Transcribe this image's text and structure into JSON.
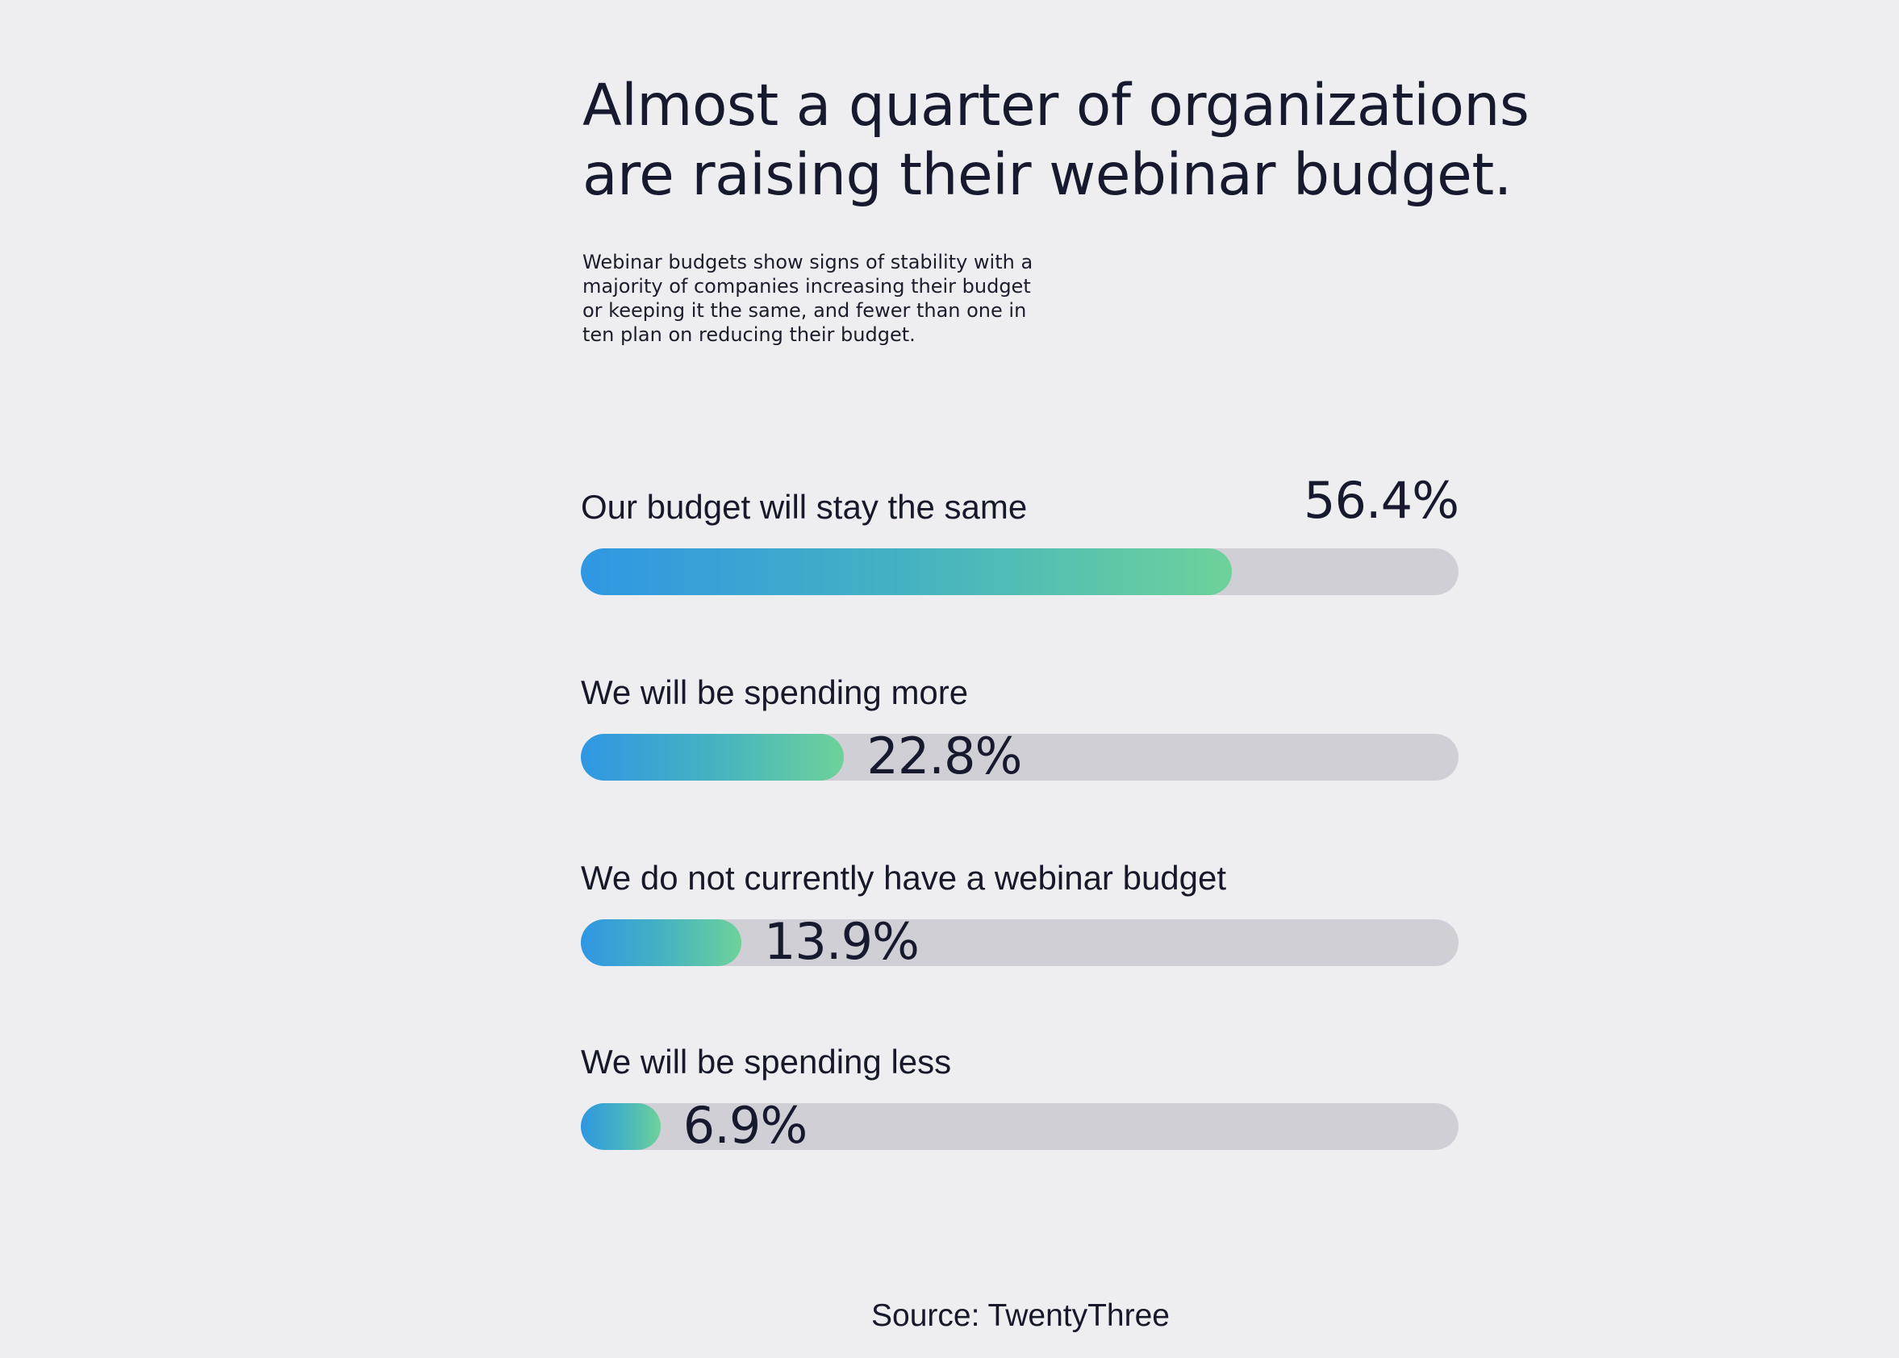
{
  "title": "Almost a quarter of organizations are raising their webinar budget.",
  "subtitle": "Webinar budgets show signs of stability with a majority of companies increasing their budget or keeping it the same, and fewer than one in ten plan on reducing their budget.",
  "source": "Source: TwentyThree",
  "colors": {
    "gradient_start": "#2f97e3",
    "gradient_end": "#6dd29a",
    "track": "#d0cfd5",
    "background": "#eeeef1"
  },
  "chart_data": {
    "type": "bar",
    "orientation": "horizontal",
    "title": "Almost a quarter of organizations are raising their webinar budget.",
    "categories": [
      "Our budget will stay the same",
      "We will be spending more",
      "We do not currently have a webinar budget",
      "We will be spending less"
    ],
    "values": [
      56.4,
      22.8,
      13.9,
      6.9
    ],
    "value_labels": [
      "56.4%",
      "22.8%",
      "13.9%",
      "6.9%"
    ],
    "unit": "%",
    "xlim": [
      0,
      100
    ],
    "grid": false,
    "legend": "none"
  }
}
